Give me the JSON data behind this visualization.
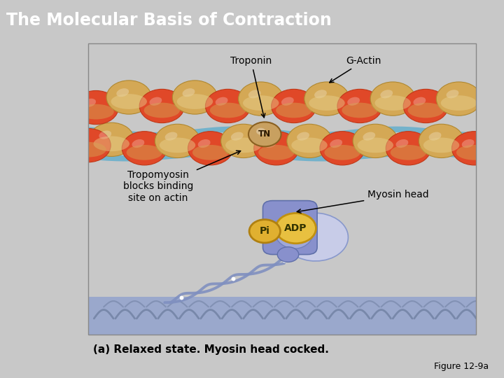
{
  "title": "The Molecular Basis of Contraction",
  "title_bg_color": "#7aad5a",
  "title_text_color": "#ffffff",
  "title_fontsize": 17,
  "fig_bg_color": "#c8c8c8",
  "panel_bg_color": "#ffffff",
  "panel_border": "#aaaaaa",
  "caption": "(a) Relaxed state. Myosin head cocked.",
  "figure_label": "Figure 12-9a",
  "labels": {
    "troponin": "Troponin",
    "g_actin": "G-Actin",
    "tn": "TN",
    "myosin_head": "Myosin head",
    "tropomyosin": "Tropomyosin\nblocks binding\nsite on actin",
    "adp": "ADP",
    "pi": "Pi"
  },
  "colors": {
    "actin_red": "#e04828",
    "actin_red_edge": "#c03818",
    "actin_tan": "#d4a855",
    "actin_tan_edge": "#b08830",
    "tropomyosin_blue": "#6ab0cc",
    "tn_tan": "#c8a060",
    "tn_edge": "#8a6020",
    "myosin_dark": "#8890cc",
    "myosin_mid": "#a0a8d8",
    "myosin_light": "#c8cce8",
    "adp_gold": "#e8c040",
    "adp_edge": "#c09010",
    "pi_gold": "#e0b030",
    "pi_edge": "#b08010",
    "tail_blue": "#8090c0",
    "bottom_blue": "#9aa8cc",
    "bottom_pattern": "#7888aa",
    "arrow_color": "#000000"
  }
}
